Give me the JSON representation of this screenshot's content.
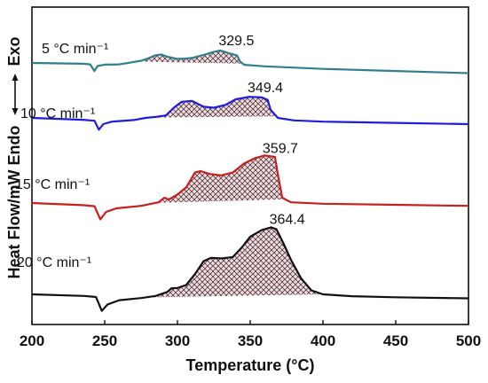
{
  "chart_data": {
    "type": "line",
    "xlabel": "Temperature (°C)",
    "ylabel": "Heat Flow/mW Endo",
    "ylabel_exo": "Exo",
    "xlim": [
      200,
      500
    ],
    "xticks": [
      "200",
      "250",
      "300",
      "350",
      "400",
      "450",
      "500"
    ],
    "grid": false,
    "legend": "none",
    "hatch": "crosshatch",
    "series": [
      {
        "name": "5 °C min⁻¹",
        "color": "#2f7f8f",
        "peak_label": "329.5",
        "peak_x": 329.5,
        "points": [
          [
            200,
            0.0
          ],
          [
            235,
            -0.25
          ],
          [
            240,
            -0.45
          ],
          [
            243,
            -2.6
          ],
          [
            245,
            -1.0
          ],
          [
            250,
            -0.55
          ],
          [
            260,
            -0.45
          ],
          [
            265,
            -0.1
          ],
          [
            275,
            0.7
          ],
          [
            280,
            1.5
          ],
          [
            285,
            2.5
          ],
          [
            289,
            2.7
          ],
          [
            293,
            2.0
          ],
          [
            300,
            1.3
          ],
          [
            305,
            1.4
          ],
          [
            310,
            1.6
          ],
          [
            318,
            2.6
          ],
          [
            325,
            3.6
          ],
          [
            329.5,
            4.0
          ],
          [
            335,
            3.2
          ],
          [
            338,
            2.8
          ],
          [
            341,
            2.4
          ],
          [
            343,
            0.5
          ],
          [
            346,
            -0.6
          ],
          [
            360,
            -1.1
          ],
          [
            400,
            -1.9
          ],
          [
            450,
            -2.6
          ],
          [
            500,
            -3.3
          ]
        ],
        "fill_range": [
          272,
          345
        ]
      },
      {
        "name": "10 °C min⁻¹",
        "color": "#1d1de0",
        "peak_label": "349.4",
        "peak_x": 349.4,
        "points": [
          [
            200,
            0.0
          ],
          [
            235,
            -0.6
          ],
          [
            243,
            -0.9
          ],
          [
            246,
            -3.8
          ],
          [
            249,
            -2.0
          ],
          [
            255,
            -1.2
          ],
          [
            270,
            -0.7
          ],
          [
            278,
            0.0
          ],
          [
            285,
            0.3
          ],
          [
            292,
            0.8
          ],
          [
            298,
            3.5
          ],
          [
            303,
            5.2
          ],
          [
            310,
            5.5
          ],
          [
            318,
            3.6
          ],
          [
            325,
            3.3
          ],
          [
            333,
            4.2
          ],
          [
            340,
            6.0
          ],
          [
            349.4,
            6.8
          ],
          [
            358,
            6.6
          ],
          [
            362,
            5.8
          ],
          [
            364,
            2.6
          ],
          [
            369,
            0.0
          ],
          [
            380,
            -0.8
          ],
          [
            400,
            -1.2
          ],
          [
            450,
            -1.6
          ],
          [
            500,
            -2.0
          ]
        ],
        "fill_range": [
          280,
          368
        ]
      },
      {
        "name": "15 °C min⁻¹",
        "color": "#c81e1e",
        "peak_label": "359.7",
        "peak_x": 359.7,
        "points": [
          [
            200,
            0.0
          ],
          [
            235,
            -0.6
          ],
          [
            243,
            -0.9
          ],
          [
            247,
            -4.6
          ],
          [
            251,
            -2.5
          ],
          [
            258,
            -1.5
          ],
          [
            275,
            -0.8
          ],
          [
            287,
            0.2
          ],
          [
            291,
            1.5
          ],
          [
            294,
            1.0
          ],
          [
            300,
            2.4
          ],
          [
            306,
            4.4
          ],
          [
            312,
            8.6
          ],
          [
            316,
            9.0
          ],
          [
            322,
            8.2
          ],
          [
            330,
            7.8
          ],
          [
            338,
            8.6
          ],
          [
            346,
            11.2
          ],
          [
            353,
            12.6
          ],
          [
            359.7,
            13.4
          ],
          [
            367,
            13.0
          ],
          [
            369,
            8.0
          ],
          [
            372,
            1.5
          ],
          [
            378,
            0.2
          ],
          [
            400,
            -0.2
          ],
          [
            450,
            -0.5
          ],
          [
            500,
            -0.8
          ]
        ],
        "fill_range": [
          285,
          374
        ]
      },
      {
        "name": "20 °C min⁻¹",
        "color": "#111111",
        "peak_label": "364.4",
        "peak_x": 364.4,
        "points": [
          [
            200,
            0.0
          ],
          [
            236,
            -0.6
          ],
          [
            244,
            -1.0
          ],
          [
            248,
            -6.2
          ],
          [
            252,
            -3.8
          ],
          [
            260,
            -2.2
          ],
          [
            275,
            -1.4
          ],
          [
            285,
            -0.6
          ],
          [
            293,
            0.9
          ],
          [
            296,
            2.3
          ],
          [
            300,
            2.4
          ],
          [
            306,
            3.5
          ],
          [
            312,
            7.6
          ],
          [
            318,
            12.5
          ],
          [
            323,
            13.7
          ],
          [
            330,
            13.5
          ],
          [
            338,
            14.0
          ],
          [
            344,
            17.5
          ],
          [
            350,
            21.7
          ],
          [
            358,
            24.2
          ],
          [
            364.4,
            25.2
          ],
          [
            368,
            24.5
          ],
          [
            373,
            19.0
          ],
          [
            378,
            13.0
          ],
          [
            385,
            6.0
          ],
          [
            392,
            1.5
          ],
          [
            400,
            0.0
          ],
          [
            420,
            -0.7
          ],
          [
            450,
            -1.1
          ],
          [
            500,
            -1.5
          ]
        ],
        "fill_range": [
          278,
          400
        ]
      }
    ]
  }
}
